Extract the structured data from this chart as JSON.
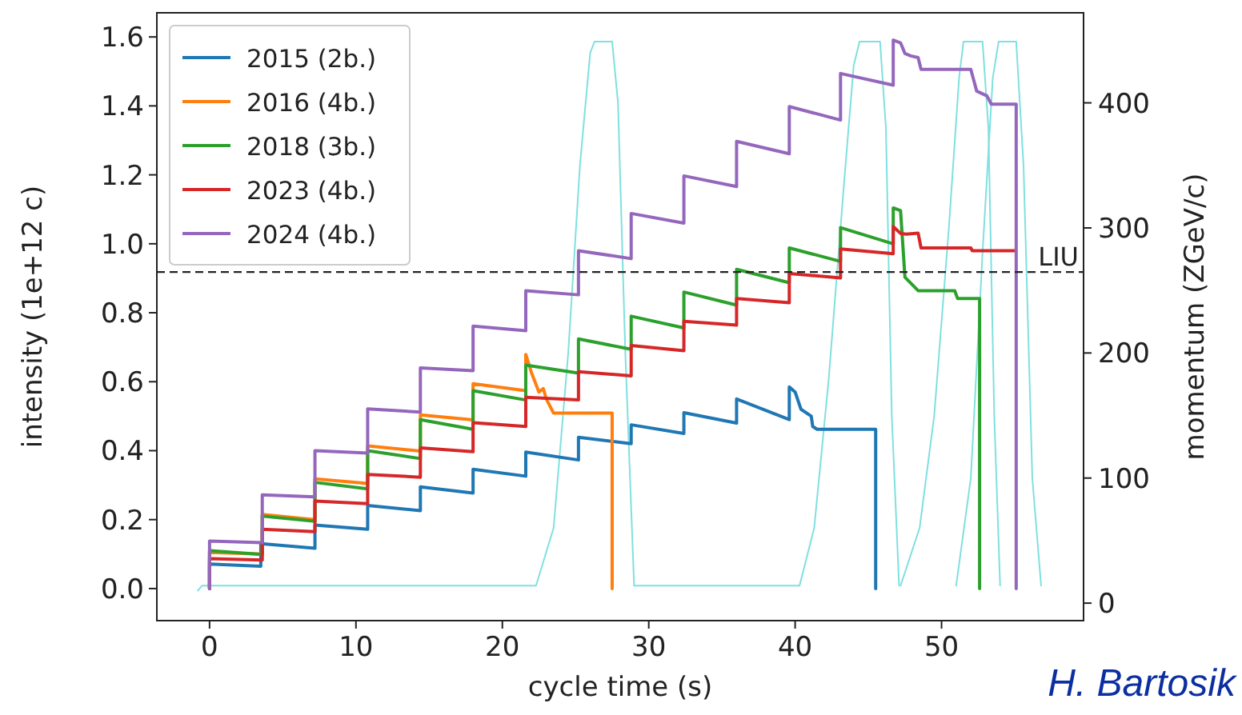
{
  "chart_data": {
    "type": "line",
    "xlabel": "cycle time (s)",
    "ylabel": "intensity (1e+12 c)",
    "y2label": "momentum (ZGeV/c)",
    "xlim": [
      -3.6,
      59.7
    ],
    "xticks": [
      0,
      10,
      20,
      30,
      40,
      50
    ],
    "ylim": [
      -0.093,
      1.67
    ],
    "yticks": [
      {
        "value": 0,
        "label": "0.0"
      },
      {
        "value": 0.2,
        "label": "0.2"
      },
      {
        "value": 0.4,
        "label": "0.4"
      },
      {
        "value": 0.6,
        "label": "0.6"
      },
      {
        "value": 0.8,
        "label": "0.8"
      },
      {
        "value": 1,
        "label": "1.0"
      },
      {
        "value": 1.2,
        "label": "1.2"
      },
      {
        "value": 1.4,
        "label": "1.4"
      },
      {
        "value": 1.6,
        "label": "1.6"
      }
    ],
    "y2lim": [
      -14,
      472
    ],
    "y2ticks": [
      0,
      100,
      200,
      300,
      400
    ],
    "legend": "top left",
    "ref_lines": [
      {
        "axis": "y",
        "value": 0.918,
        "label": "LIU",
        "color": "#222222",
        "line_style": "dashed"
      }
    ],
    "annotations": [
      "H. Bartosik"
    ],
    "series": [
      {
        "axis": "y2",
        "color": "#80e0e0",
        "x": [
          -0.8,
          -0.5,
          22.3,
          23.5,
          24.5,
          25.3,
          26.0,
          26.3,
          27.5,
          27.9,
          28.4,
          29.0
        ],
        "values": [
          10,
          14,
          14,
          60,
          200,
          350,
          440,
          449,
          449,
          400,
          200,
          14
        ]
      },
      {
        "axis": "y2",
        "color": "#80e0e0",
        "x": [
          29.0,
          40.3,
          41.3,
          42.3,
          43.3,
          44.0,
          44.4,
          45.8,
          46.2,
          46.6,
          47.1
        ],
        "values": [
          14,
          14,
          60,
          180,
          330,
          430,
          449,
          449,
          380,
          150,
          14
        ]
      },
      {
        "axis": "y2",
        "color": "#80e0e0",
        "x": [
          47.2,
          48.5,
          49.5,
          50.5,
          51.2,
          51.5,
          52.8,
          53.2,
          53.6,
          54.0
        ],
        "values": [
          14,
          60,
          150,
          300,
          420,
          449,
          449,
          380,
          150,
          14
        ]
      },
      {
        "axis": "y2",
        "color": "#80e0e0",
        "x": [
          51.0,
          52.0,
          52.8,
          53.5,
          53.9,
          55.1,
          55.6,
          56.2,
          56.8
        ],
        "values": [
          14,
          100,
          280,
          420,
          449,
          449,
          350,
          100,
          14
        ]
      },
      {
        "name": "2015 (2b.)",
        "color": "#1f77b4",
        "x": [
          0,
          0,
          3.5,
          3.5,
          7.2,
          7.2,
          10.8,
          10.8,
          14.4,
          14.4,
          18,
          18,
          21.6,
          21.6,
          25.2,
          25.2,
          28.8,
          28.8,
          32.4,
          32.4,
          36,
          36,
          39.6,
          39.6,
          40.0,
          40.4,
          41.1,
          41.2,
          41.5,
          45.5,
          45.5
        ],
        "values": [
          0,
          0.071,
          0.065,
          0.13,
          0.117,
          0.184,
          0.172,
          0.241,
          0.226,
          0.295,
          0.277,
          0.346,
          0.326,
          0.396,
          0.373,
          0.439,
          0.42,
          0.475,
          0.45,
          0.51,
          0.48,
          0.55,
          0.49,
          0.585,
          0.57,
          0.52,
          0.5,
          0.47,
          0.462,
          0.462,
          0
        ]
      },
      {
        "name": "2016 (4b.)",
        "color": "#ff7f0e",
        "x": [
          0,
          0,
          3.6,
          3.6,
          7.2,
          7.2,
          10.8,
          10.8,
          14.4,
          14.4,
          18,
          18,
          21.6,
          21.6,
          22.0,
          22.5,
          22.8,
          23.0,
          23.5,
          27.5,
          27.5
        ],
        "values": [
          0,
          0.105,
          0.1,
          0.215,
          0.2,
          0.318,
          0.305,
          0.414,
          0.399,
          0.504,
          0.489,
          0.594,
          0.574,
          0.679,
          0.625,
          0.57,
          0.58,
          0.55,
          0.509,
          0.509,
          0
        ]
      },
      {
        "name": "2018 (3b.)",
        "color": "#2ca02c",
        "x": [
          0,
          0,
          3.6,
          3.6,
          7.2,
          7.2,
          10.8,
          10.8,
          14.4,
          14.4,
          18,
          18,
          21.6,
          21.6,
          25.2,
          25.2,
          28.8,
          28.8,
          32.4,
          32.4,
          36,
          36,
          39.6,
          39.6,
          43.1,
          43.1,
          46.7,
          46.7,
          47.2,
          47.5,
          48.4,
          50.9,
          51.1,
          52.6,
          52.6
        ],
        "values": [
          0,
          0.11,
          0.099,
          0.21,
          0.195,
          0.308,
          0.289,
          0.4,
          0.377,
          0.49,
          0.462,
          0.574,
          0.547,
          0.648,
          0.625,
          0.724,
          0.694,
          0.79,
          0.756,
          0.86,
          0.822,
          0.926,
          0.887,
          0.988,
          0.949,
          1.047,
          1.0,
          1.104,
          1.096,
          0.903,
          0.864,
          0.864,
          0.841,
          0.841,
          0
        ]
      },
      {
        "name": "2023 (4b.)",
        "color": "#d62728",
        "x": [
          0,
          0,
          3.6,
          3.6,
          7.2,
          7.2,
          10.8,
          10.8,
          14.4,
          14.4,
          18,
          18,
          21.6,
          21.6,
          25.2,
          25.2,
          28.8,
          28.8,
          32.4,
          32.4,
          36,
          36,
          39.6,
          39.6,
          43.1,
          43.1,
          46.7,
          46.7,
          47.2,
          47.6,
          48.4,
          48.6,
          52.0,
          52.1,
          55.0
        ],
        "values": [
          0,
          0.087,
          0.083,
          0.172,
          0.165,
          0.254,
          0.246,
          0.331,
          0.323,
          0.408,
          0.397,
          0.481,
          0.47,
          0.555,
          0.547,
          0.629,
          0.617,
          0.705,
          0.69,
          0.775,
          0.764,
          0.841,
          0.829,
          0.914,
          0.901,
          0.985,
          0.971,
          1.05,
          1.03,
          1.028,
          1.031,
          0.988,
          0.988,
          0.98,
          0.98
        ]
      },
      {
        "name": "2024 (4b.)",
        "color": "#9467bd",
        "x": [
          0,
          0,
          3.6,
          3.6,
          7.2,
          7.2,
          10.8,
          10.8,
          14.4,
          14.4,
          18,
          18,
          21.6,
          21.6,
          25.2,
          25.2,
          28.8,
          28.8,
          32.4,
          32.4,
          36,
          36,
          39.6,
          39.6,
          43.1,
          43.1,
          46.7,
          46.7,
          47.2,
          47.5,
          47.9,
          48.4,
          48.6,
          52.0,
          52.4,
          53.1,
          53.4,
          55.1,
          55.1
        ],
        "values": [
          0,
          0.138,
          0.133,
          0.272,
          0.266,
          0.4,
          0.393,
          0.521,
          0.512,
          0.64,
          0.632,
          0.761,
          0.748,
          0.864,
          0.852,
          0.98,
          0.957,
          1.088,
          1.06,
          1.197,
          1.166,
          1.297,
          1.261,
          1.398,
          1.359,
          1.494,
          1.46,
          1.591,
          1.583,
          1.552,
          1.545,
          1.54,
          1.506,
          1.506,
          1.443,
          1.429,
          1.405,
          1.405,
          0
        ]
      }
    ]
  }
}
